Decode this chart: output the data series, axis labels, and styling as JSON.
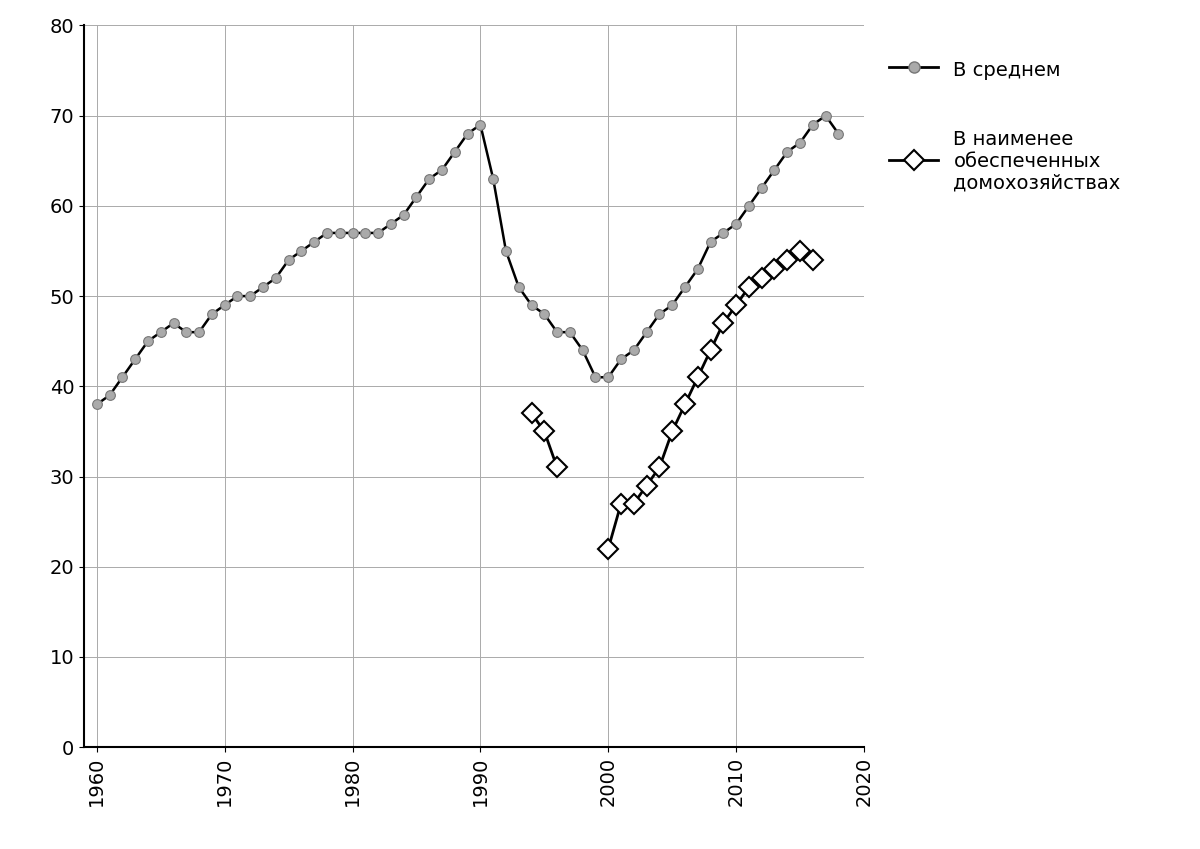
{
  "series1_name": "В среднем",
  "series2_name": "В наименее\nобеспеченных\nдомохозяйствах",
  "series1": {
    "x": [
      1960,
      1961,
      1962,
      1963,
      1964,
      1965,
      1966,
      1967,
      1968,
      1969,
      1970,
      1971,
      1972,
      1973,
      1974,
      1975,
      1976,
      1977,
      1978,
      1979,
      1980,
      1981,
      1982,
      1983,
      1984,
      1985,
      1986,
      1987,
      1988,
      1989,
      1990,
      1991,
      1992,
      1993,
      1994,
      1995,
      1996,
      1997,
      1998,
      1999,
      2000,
      2001,
      2002,
      2003,
      2004,
      2005,
      2006,
      2007,
      2008,
      2009,
      2010,
      2011,
      2012,
      2013,
      2014,
      2015,
      2016,
      2017,
      2018
    ],
    "y": [
      38,
      39,
      41,
      43,
      45,
      46,
      47,
      46,
      46,
      48,
      49,
      50,
      50,
      51,
      52,
      54,
      55,
      56,
      57,
      57,
      57,
      57,
      57,
      58,
      59,
      61,
      63,
      64,
      66,
      68,
      69,
      63,
      55,
      51,
      49,
      48,
      46,
      46,
      44,
      41,
      41,
      43,
      44,
      46,
      48,
      49,
      51,
      53,
      56,
      57,
      58,
      60,
      62,
      64,
      66,
      67,
      69,
      70,
      68
    ]
  },
  "series2_seg1": {
    "x": [
      1994,
      1995,
      1996
    ],
    "y": [
      37,
      35,
      31
    ]
  },
  "series2_seg2": {
    "x": [
      2000,
      2001,
      2002,
      2003,
      2004,
      2005,
      2006,
      2007,
      2008,
      2009,
      2010,
      2011,
      2012,
      2013,
      2014,
      2015,
      2016
    ],
    "y": [
      22,
      27,
      27,
      29,
      31,
      35,
      38,
      41,
      44,
      47,
      49,
      51,
      52,
      53,
      54,
      55,
      54
    ]
  },
  "xlim": [
    1959,
    2020
  ],
  "ylim": [
    0,
    80
  ],
  "xticks": [
    1960,
    1970,
    1980,
    1990,
    2000,
    2010,
    2020
  ],
  "yticks": [
    0,
    10,
    20,
    30,
    40,
    50,
    60,
    70,
    80
  ],
  "background_color": "#ffffff",
  "s1_markercolor": "#aaaaaa",
  "s1_edgecolor": "#777777",
  "s1_linecolor": "#000000",
  "s2_linecolor": "#000000",
  "grid_color": "#aaaaaa"
}
